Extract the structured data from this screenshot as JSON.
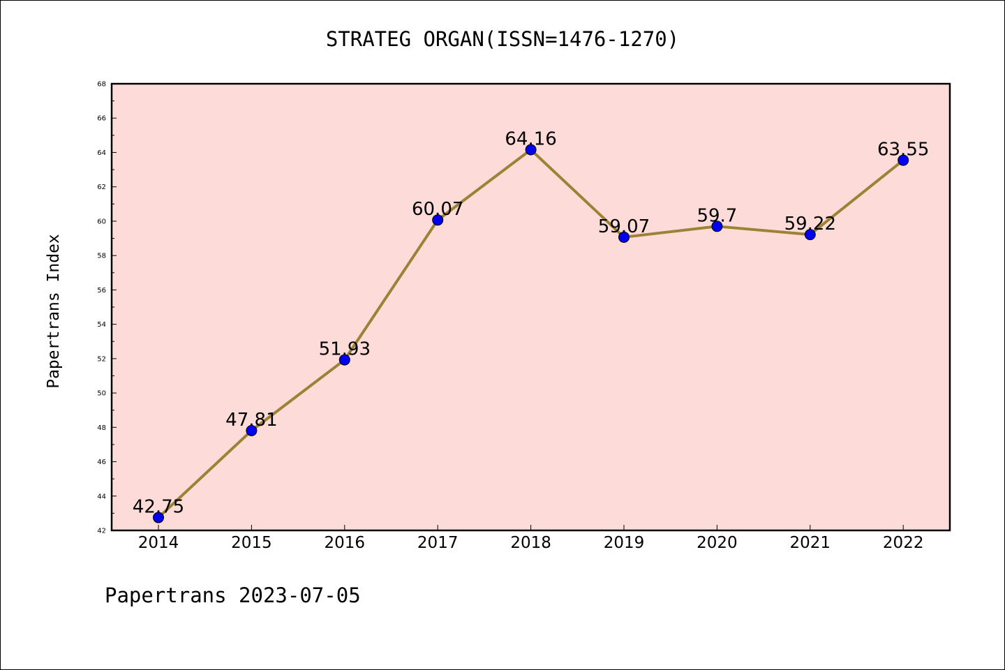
{
  "chart_data": {
    "type": "line",
    "title": "STRATEG ORGAN(ISSN=1476-1270)",
    "ylabel": "Papertrans Index",
    "xlabel": "",
    "footer": "Papertrans 2023-07-05",
    "categories": [
      "2014",
      "2015",
      "2016",
      "2017",
      "2018",
      "2019",
      "2020",
      "2021",
      "2022"
    ],
    "series": [
      {
        "values": [
          42.75,
          47.81,
          51.93,
          60.07,
          64.16,
          59.07,
          59.7,
          59.22,
          63.55
        ],
        "labels": [
          "42.75",
          "47.81",
          "51.93",
          "60.07",
          "64.16",
          "59.07",
          "59.7",
          "59.22",
          "63.55"
        ]
      }
    ],
    "ylim": [
      42,
      68
    ],
    "yticks": [
      42,
      44,
      46,
      48,
      50,
      52,
      54,
      56,
      58,
      60,
      62,
      64,
      66,
      68
    ],
    "grid": false,
    "legend": "none",
    "colors": {
      "plot_background": "#fddbd8",
      "line": "#9b8235",
      "marker": "#0000ee",
      "axis": "#000000"
    }
  }
}
